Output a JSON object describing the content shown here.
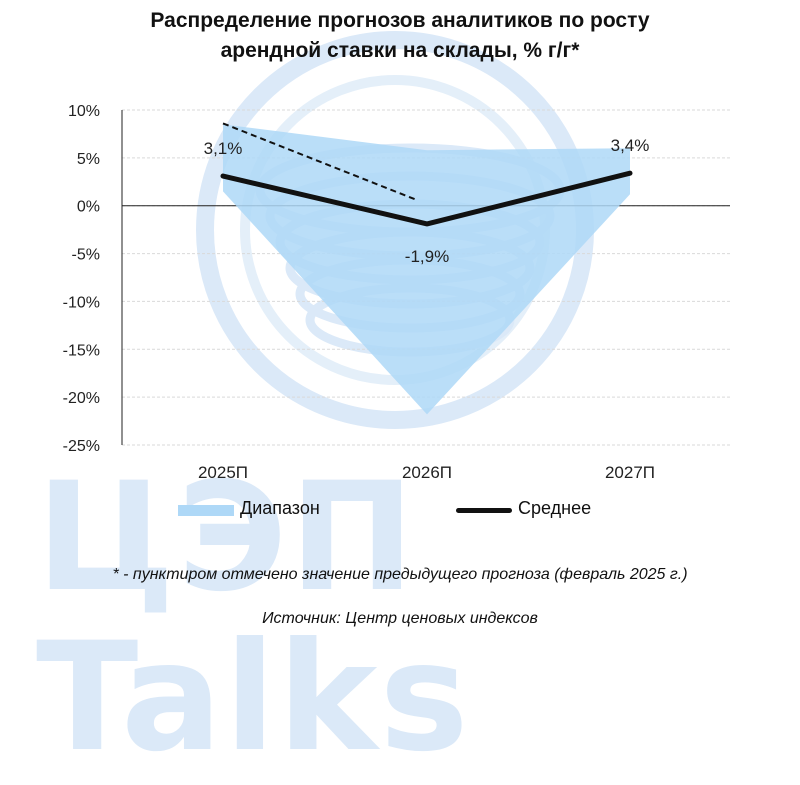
{
  "chart_data": {
    "type": "area",
    "title_line1": "Распределение прогнозов аналитиков по росту",
    "title_line2": "арендной ставки на склады, % г/г*",
    "categories": [
      "2025П",
      "2026П",
      "2027П"
    ],
    "ylim": [
      -25,
      10
    ],
    "yticks": [
      10,
      5,
      0,
      -5,
      -10,
      -15,
      -20,
      -25
    ],
    "ytick_labels": [
      "10%",
      "5%",
      "0%",
      "-5%",
      "-10%",
      "-15%",
      "-20%",
      "-25%"
    ],
    "grid": true,
    "legend_position": "bottom",
    "range": {
      "name": "Диапазон",
      "upper": [
        8.5,
        5.8,
        6.0
      ],
      "lower": [
        1.5,
        -21.8,
        1.2
      ],
      "color": "#aed8f7"
    },
    "mean": {
      "name": "Среднее",
      "values": [
        3.1,
        -1.9,
        3.4
      ],
      "labels": [
        "3,1%",
        "-1,9%",
        "3,4%"
      ],
      "color": "#111111"
    },
    "previous_forecast": {
      "values": [
        8.6,
        0.6
      ],
      "x_positions": [
        0,
        0.95
      ]
    }
  },
  "notes": {
    "footnote": "* - пунктиром отмечено значение предыдущего прогноза (февраль 2025 г.)",
    "source": "Источник: Центр ценовых индексов"
  },
  "watermark": {
    "text": "ЦЭП Talks",
    "color": "#dbe9f8"
  }
}
